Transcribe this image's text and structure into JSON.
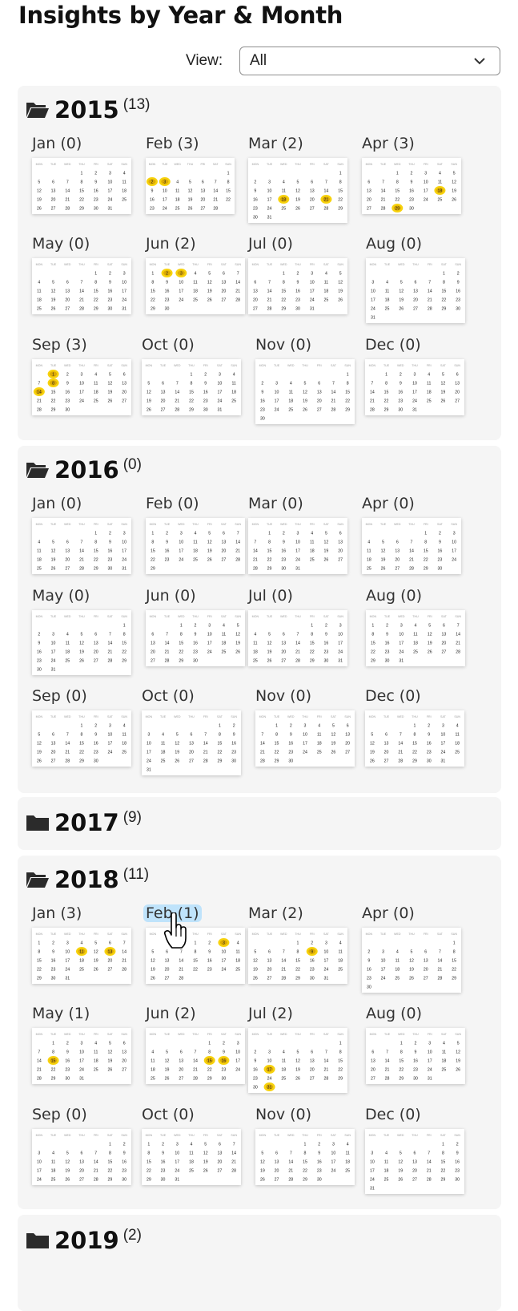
{
  "page": {
    "title": "Insights by Year & Month"
  },
  "view": {
    "label": "View:",
    "selected": "All"
  },
  "weekday_headers": [
    "MON",
    "TUE",
    "WED",
    "THU",
    "FRI",
    "SAT",
    "SUN"
  ],
  "colors": {
    "panel_bg": "#f5f5f5",
    "highlight": "#f7d000",
    "hover_bg": "#bfe3fb"
  },
  "years": [
    {
      "year": "2015",
      "count": "(13)",
      "expanded": true,
      "months": [
        {
          "label": "Jan (0)",
          "start": 3,
          "days": 31,
          "marked": []
        },
        {
          "label": "Feb (3)",
          "start": 6,
          "days": 28,
          "marked": [
            2,
            3
          ]
        },
        {
          "label": "Mar (2)",
          "start": 6,
          "days": 31,
          "marked": [
            18,
            21
          ]
        },
        {
          "label": "Apr (3)",
          "start": 2,
          "days": 30,
          "marked": [
            18,
            29
          ]
        },
        {
          "label": "May (0)",
          "start": 4,
          "days": 31,
          "marked": []
        },
        {
          "label": "Jun (2)",
          "start": 0,
          "days": 30,
          "marked": [
            2,
            3
          ]
        },
        {
          "label": "Jul (0)",
          "start": 2,
          "days": 31,
          "marked": []
        },
        {
          "label": "Aug (0)",
          "start": 5,
          "days": 31,
          "marked": []
        },
        {
          "label": "Sep (3)",
          "start": 1,
          "days": 30,
          "marked": [
            1,
            8,
            14
          ]
        },
        {
          "label": "Oct (0)",
          "start": 3,
          "days": 31,
          "marked": []
        },
        {
          "label": "Nov (0)",
          "start": 6,
          "days": 30,
          "marked": []
        },
        {
          "label": "Dec (0)",
          "start": 1,
          "days": 31,
          "marked": []
        }
      ]
    },
    {
      "year": "2016",
      "count": "(0)",
      "expanded": true,
      "months": [
        {
          "label": "Jan (0)",
          "start": 4,
          "days": 31,
          "marked": []
        },
        {
          "label": "Feb (0)",
          "start": 0,
          "days": 29,
          "marked": []
        },
        {
          "label": "Mar (0)",
          "start": 1,
          "days": 31,
          "marked": []
        },
        {
          "label": "Apr (0)",
          "start": 4,
          "days": 30,
          "marked": []
        },
        {
          "label": "May (0)",
          "start": 6,
          "days": 31,
          "marked": []
        },
        {
          "label": "Jun (0)",
          "start": 2,
          "days": 30,
          "marked": []
        },
        {
          "label": "Jul (0)",
          "start": 4,
          "days": 31,
          "marked": []
        },
        {
          "label": "Aug (0)",
          "start": 0,
          "days": 31,
          "marked": []
        },
        {
          "label": "Sep (0)",
          "start": 3,
          "days": 30,
          "marked": []
        },
        {
          "label": "Oct (0)",
          "start": 5,
          "days": 31,
          "marked": []
        },
        {
          "label": "Nov (0)",
          "start": 1,
          "days": 30,
          "marked": []
        },
        {
          "label": "Dec (0)",
          "start": 3,
          "days": 31,
          "marked": []
        }
      ]
    },
    {
      "year": "2017",
      "count": "(9)",
      "expanded": false,
      "months": []
    },
    {
      "year": "2018",
      "count": "(11)",
      "expanded": true,
      "months": [
        {
          "label": "Jan (3)",
          "start": 0,
          "days": 31,
          "marked": [
            11,
            13
          ]
        },
        {
          "label": "Feb (1)",
          "start": 3,
          "days": 28,
          "marked": [
            3
          ],
          "hovered": true
        },
        {
          "label": "Mar (2)",
          "start": 3,
          "days": 31,
          "marked": [
            9
          ]
        },
        {
          "label": "Apr (0)",
          "start": 6,
          "days": 30,
          "marked": []
        },
        {
          "label": "May (1)",
          "start": 1,
          "days": 31,
          "marked": [
            15
          ]
        },
        {
          "label": "Jun (2)",
          "start": 4,
          "days": 30,
          "marked": [
            15,
            16
          ]
        },
        {
          "label": "Jul (2)",
          "start": 6,
          "days": 31,
          "marked": [
            17,
            31
          ]
        },
        {
          "label": "Aug (0)",
          "start": 2,
          "days": 31,
          "marked": []
        },
        {
          "label": "Sep (0)",
          "start": 5,
          "days": 30,
          "marked": []
        },
        {
          "label": "Oct (0)",
          "start": 0,
          "days": 31,
          "marked": []
        },
        {
          "label": "Nov (0)",
          "start": 3,
          "days": 30,
          "marked": []
        },
        {
          "label": "Dec (0)",
          "start": 5,
          "days": 31,
          "marked": []
        }
      ]
    },
    {
      "year": "2019",
      "count": "(2)",
      "expanded": false,
      "months": []
    }
  ]
}
